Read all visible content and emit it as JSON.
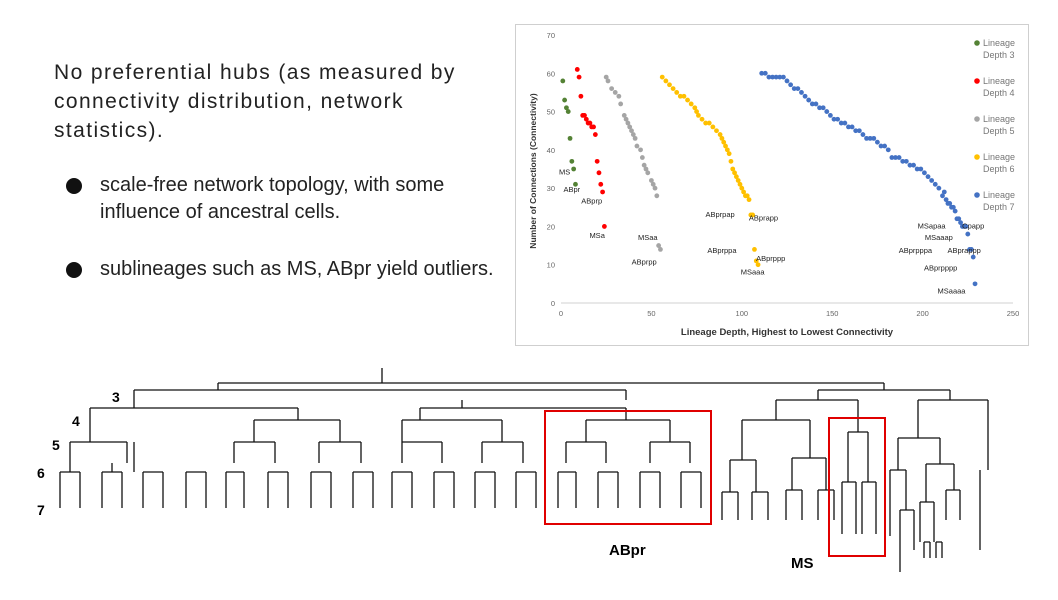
{
  "slide": {
    "intro": "No preferential hubs (as measured by connectivity distribution, network statistics).",
    "bullets": [
      "scale-free network topology, with some influence of ancestral cells.",
      "sublineages such as MS, ABpr yield outliers."
    ]
  },
  "chart_data": {
    "type": "scatter",
    "xlabel": "Lineage Depth, Highest to Lowest Connectivity",
    "ylabel": "Number of Connections (Connectivity)",
    "xlim": [
      0,
      250
    ],
    "ylim": [
      0,
      70
    ],
    "xticks": [
      0,
      50,
      100,
      150,
      200,
      250
    ],
    "yticks": [
      0,
      10,
      20,
      30,
      40,
      50,
      60,
      70
    ],
    "grid": false,
    "legend_position": "right",
    "series": [
      {
        "name": "Lineage Depth 3",
        "color": "#548235",
        "points": [
          [
            1,
            58
          ],
          [
            2,
            53
          ],
          [
            3,
            51
          ],
          [
            4,
            50
          ],
          [
            5,
            43
          ],
          [
            6,
            37
          ],
          [
            7,
            35
          ],
          [
            8,
            31
          ]
        ]
      },
      {
        "name": "Lineage Depth 4",
        "color": "#ff0000",
        "points": [
          [
            9,
            61
          ],
          [
            10,
            59
          ],
          [
            11,
            54
          ],
          [
            12,
            49
          ],
          [
            13,
            49
          ],
          [
            14,
            48
          ],
          [
            15,
            47
          ],
          [
            16,
            47
          ],
          [
            17,
            46
          ],
          [
            18,
            46
          ],
          [
            19,
            44
          ],
          [
            20,
            37
          ],
          [
            21,
            34
          ],
          [
            22,
            31
          ],
          [
            23,
            29
          ],
          [
            24,
            20
          ]
        ]
      },
      {
        "name": "Lineage Depth 5",
        "color": "#a5a5a5",
        "points": [
          [
            25,
            59
          ],
          [
            26,
            58
          ],
          [
            28,
            56
          ],
          [
            30,
            55
          ],
          [
            32,
            54
          ],
          [
            33,
            52
          ],
          [
            35,
            49
          ],
          [
            36,
            48
          ],
          [
            37,
            47
          ],
          [
            38,
            46
          ],
          [
            39,
            45
          ],
          [
            40,
            44
          ],
          [
            41,
            43
          ],
          [
            42,
            41
          ],
          [
            44,
            40
          ],
          [
            45,
            38
          ],
          [
            46,
            36
          ],
          [
            47,
            35
          ],
          [
            48,
            34
          ],
          [
            50,
            32
          ],
          [
            51,
            31
          ],
          [
            52,
            30
          ],
          [
            53,
            28
          ],
          [
            54,
            15
          ],
          [
            55,
            14
          ]
        ]
      },
      {
        "name": "Lineage Depth 6",
        "color": "#ffc000",
        "points": [
          [
            56,
            59
          ],
          [
            58,
            58
          ],
          [
            60,
            57
          ],
          [
            62,
            56
          ],
          [
            64,
            55
          ],
          [
            66,
            54
          ],
          [
            68,
            54
          ],
          [
            70,
            53
          ],
          [
            72,
            52
          ],
          [
            74,
            51
          ],
          [
            75,
            50
          ],
          [
            76,
            49
          ],
          [
            78,
            48
          ],
          [
            80,
            47
          ],
          [
            82,
            47
          ],
          [
            84,
            46
          ],
          [
            86,
            45
          ],
          [
            88,
            44
          ],
          [
            89,
            43
          ],
          [
            90,
            42
          ],
          [
            91,
            41
          ],
          [
            92,
            40
          ],
          [
            93,
            39
          ],
          [
            94,
            37
          ],
          [
            95,
            35
          ],
          [
            96,
            34
          ],
          [
            97,
            33
          ],
          [
            98,
            32
          ],
          [
            99,
            31
          ],
          [
            100,
            30
          ],
          [
            101,
            29
          ],
          [
            102,
            28
          ],
          [
            103,
            28
          ],
          [
            104,
            27
          ],
          [
            105,
            23
          ],
          [
            106,
            23
          ],
          [
            107,
            14
          ],
          [
            108,
            11
          ],
          [
            109,
            10
          ]
        ]
      },
      {
        "name": "Lineage Depth 7",
        "color": "#4472c4",
        "points": [
          [
            111,
            60
          ],
          [
            113,
            60
          ],
          [
            115,
            59
          ],
          [
            117,
            59
          ],
          [
            119,
            59
          ],
          [
            121,
            59
          ],
          [
            123,
            59
          ],
          [
            125,
            58
          ],
          [
            127,
            57
          ],
          [
            129,
            56
          ],
          [
            131,
            56
          ],
          [
            133,
            55
          ],
          [
            135,
            54
          ],
          [
            137,
            53
          ],
          [
            139,
            52
          ],
          [
            141,
            52
          ],
          [
            143,
            51
          ],
          [
            145,
            51
          ],
          [
            147,
            50
          ],
          [
            149,
            49
          ],
          [
            151,
            48
          ],
          [
            153,
            48
          ],
          [
            155,
            47
          ],
          [
            157,
            47
          ],
          [
            159,
            46
          ],
          [
            161,
            46
          ],
          [
            163,
            45
          ],
          [
            165,
            45
          ],
          [
            167,
            44
          ],
          [
            169,
            43
          ],
          [
            171,
            43
          ],
          [
            173,
            43
          ],
          [
            175,
            42
          ],
          [
            177,
            41
          ],
          [
            179,
            41
          ],
          [
            181,
            40
          ],
          [
            183,
            38
          ],
          [
            185,
            38
          ],
          [
            187,
            38
          ],
          [
            189,
            37
          ],
          [
            191,
            37
          ],
          [
            193,
            36
          ],
          [
            195,
            36
          ],
          [
            197,
            35
          ],
          [
            199,
            35
          ],
          [
            201,
            34
          ],
          [
            203,
            33
          ],
          [
            205,
            32
          ],
          [
            207,
            31
          ],
          [
            209,
            30
          ],
          [
            211,
            28
          ],
          [
            212,
            29
          ],
          [
            213,
            27
          ],
          [
            214,
            26
          ],
          [
            215,
            26
          ],
          [
            216,
            25
          ],
          [
            217,
            25
          ],
          [
            218,
            24
          ],
          [
            219,
            22
          ],
          [
            220,
            22
          ],
          [
            221,
            21
          ],
          [
            222,
            20
          ],
          [
            223,
            20
          ],
          [
            224,
            20
          ],
          [
            225,
            18
          ],
          [
            226,
            14
          ],
          [
            227,
            14
          ],
          [
            228,
            12
          ],
          [
            229,
            5
          ]
        ]
      }
    ],
    "annotations": [
      {
        "text": "MS",
        "x": 2,
        "y": 33.5
      },
      {
        "text": "ABpr",
        "x": 6,
        "y": 29
      },
      {
        "text": "ABprp",
        "x": 17,
        "y": 26
      },
      {
        "text": "MSa",
        "x": 20,
        "y": 17
      },
      {
        "text": "MSaa",
        "x": 48,
        "y": 16.5
      },
      {
        "text": "ABprpp",
        "x": 46,
        "y": 10
      },
      {
        "text": "ABprpap",
        "x": 88,
        "y": 22.5
      },
      {
        "text": "ABprapp",
        "x": 112,
        "y": 21.5
      },
      {
        "text": "ABprppa",
        "x": 89,
        "y": 13
      },
      {
        "text": "ABprppp",
        "x": 116,
        "y": 11
      },
      {
        "text": "MSaaa",
        "x": 106,
        "y": 7.5
      },
      {
        "text": "MSapaa",
        "x": 205,
        "y": 19.5
      },
      {
        "text": "Cpapp",
        "x": 228,
        "y": 19.5
      },
      {
        "text": "MSaaap",
        "x": 209,
        "y": 16.5
      },
      {
        "text": "ABprpppa",
        "x": 196,
        "y": 13
      },
      {
        "text": "ABprappp",
        "x": 223,
        "y": 13
      },
      {
        "text": "ABprpppp",
        "x": 210,
        "y": 8.5
      },
      {
        "text": "MSaaaa",
        "x": 216,
        "y": 2.5
      }
    ]
  },
  "tree": {
    "depth_labels": [
      "3",
      "4",
      "5",
      "6",
      "7"
    ],
    "highlight_labels": [
      "ABpr",
      "MS"
    ],
    "highlight_color": "#e00000"
  }
}
